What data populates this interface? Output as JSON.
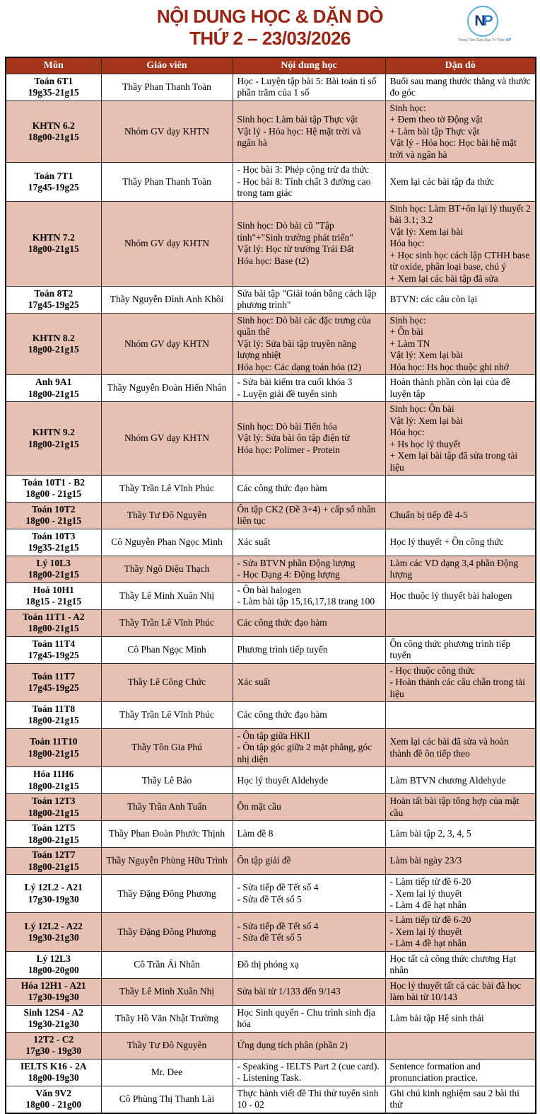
{
  "title": {
    "line1": "NỘI DUNG HỌC & DẶN DÒ",
    "line2": "THỨ 2 – 23/03/2026"
  },
  "logo": {
    "letter_n": "N",
    "letter_p": "P",
    "subtext": "Trung Tâm Giáo Dục Trí Thức",
    "subtext_brand": "NP"
  },
  "colors": {
    "title": "#9b2312",
    "header_bg": "#a5361b",
    "header_text": "#ffffff",
    "row_highlight": "#e6c1b3",
    "logo_blue": "#56aee0"
  },
  "table": {
    "headers": [
      "Môn",
      "Giáo viên",
      "Nội dung học",
      "Dặn dò"
    ],
    "rows": [
      {
        "subject": "Toán 6T1",
        "time": "19g35-21g15",
        "teacher": "Thầy Phan Thanh Toàn",
        "content": [
          "Học - Luyện tập bài 5: Bài toán tỉ số phần trăm của 1 số"
        ],
        "homework": [
          "Buổi sau mang thước thẳng và thước đo góc"
        ],
        "highlight": false
      },
      {
        "subject": "KHTN 6.2",
        "time": "18g00-21g15",
        "teacher": "Nhóm GV dạy KHTN",
        "content": [
          "Sinh học: Làm bài tập Thực vật",
          "Vật lý - Hóa học: Hệ mặt trời và ngân hà"
        ],
        "homework": [
          "Sinh học:",
          "+ Đem theo tờ Động vật",
          "+ Làm bài tập Thực vật",
          "Vật lý - Hóa học: Học bài hệ mặt trời và ngân hà"
        ],
        "highlight": true
      },
      {
        "subject": "Toán 7T1",
        "time": "17g45-19g25",
        "teacher": "Thầy Phan Thanh Toàn",
        "content": [
          "- Học bài 3: Phép cộng trừ đa thức",
          "- Học bài 8: Tính chất 3 đường cao trong tam giác"
        ],
        "homework": [
          "Xem lại các bài tập đa thức"
        ],
        "highlight": false
      },
      {
        "subject": "KHTN 7.2",
        "time": "18g00-21g15",
        "teacher": "Nhóm GV dạy KHTN",
        "content": [
          "Sinh học: Dò bài cũ \"Tập tính\"+\"Sinh trưởng phát triển\"",
          "Vật lý: Học từ trường Trái Đất",
          "Hóa học: Base (t2)"
        ],
        "homework": [
          "Sinh học: Làm BT+ôn lại lý thuyết 2 bài 3.1; 3.2",
          "Vật lý: Xem lại bài",
          "Hóa học:",
          "+ Học sinh học cách lập CTHH base từ oxide, phân loại base, chú ý",
          "+ Xem lại các bài tập đã sửa"
        ],
        "highlight": true
      },
      {
        "subject": "Toán 8T2",
        "time": "17g45-19g25",
        "teacher": "Thầy Nguyễn Đình Anh Khôi",
        "content": [
          "Sửa bài tập \"Giải toán bằng cách lập phương trình\""
        ],
        "homework": [
          "BTVN: các câu còn lại"
        ],
        "highlight": false
      },
      {
        "subject": "KHTN 8.2",
        "time": "18g00-21g15",
        "teacher": "Nhóm GV dạy KHTN",
        "content": [
          "Sinh học: Dò bài các đặc trưng của quần thể",
          "Vật lý: Sửa bài tập truyền năng lượng nhiệt",
          "Hóa học: Các dạng toán hóa (t2)"
        ],
        "homework": [
          "Sinh học:",
          "+ Ôn bài",
          "+  Làm TN",
          "Vật lý: Xem lại bài",
          "Hóa học: Hs học thuộc ghi nhớ"
        ],
        "highlight": true
      },
      {
        "subject": "Anh 9A1",
        "time": "18g00-21g15",
        "teacher": "Thầy Nguyễn Đoàn Hiển Nhân",
        "content": [
          "- Sửa bài kiểm tra cuối khóa 3",
          "- Luyện giải đề tuyển sinh"
        ],
        "homework": [
          "Hoàn thành phần còn lại của đề luyện tập"
        ],
        "highlight": false
      },
      {
        "subject": "KHTN 9.2",
        "time": "18g00-21g15",
        "teacher": "Nhóm GV dạy KHTN",
        "content": [
          "Sinh học: Dò bài Tiến hóa",
          "Vật lý: Sửa bài ôn tập điện từ",
          "Hóa học: Polimer - Protein"
        ],
        "homework": [
          "Sinh học: Ôn bài",
          "Vật lý: Xem lại bài",
          "Hóa học:",
          "+ Hs học lý thuyết",
          "+ Xem lại bài tập đã sửa trong tài liệu"
        ],
        "highlight": true
      },
      {
        "subject": "Toán 10T1 - B2",
        "time": "18g00 - 21g15",
        "teacher": "Thầy Trần Lê Vĩnh Phúc",
        "content": [
          "Các công thức đạo hàm"
        ],
        "homework": [],
        "highlight": false
      },
      {
        "subject": "Toán 10T2",
        "time": "18g00 - 21g15",
        "teacher": "Thầy Tư Đô Nguyên",
        "content": [
          "Ôn tập CK2 (Đề 3+4) + cấp số nhân liên tục"
        ],
        "homework": [
          "Chuẩn bị tiếp đề 4-5"
        ],
        "highlight": true
      },
      {
        "subject": "Toán 10T3",
        "time": "19g35-21g15",
        "teacher": "Cô Nguyễn Phan Ngọc Minh",
        "content": [
          "Xác suất"
        ],
        "homework": [
          "Học lý thuyết + Ôn công thức"
        ],
        "highlight": false
      },
      {
        "subject": "Lý 10L3",
        "time": "18g00-21g15",
        "teacher": "Thầy Ngô Diệu Thạch",
        "content": [
          "- Sửa BTVN phần Động lượng",
          "- Học Dạng 4: Động lượng"
        ],
        "homework": [
          "Làm các VD dạng 3,4 phần Động lượng"
        ],
        "highlight": true
      },
      {
        "subject": "Hoá 10H1",
        "time": "18g15 - 21g15",
        "teacher": "Thầy Lê Minh Xuân Nhị",
        "content": [
          "- Ôn bài halogen",
          "- Làm bài tập 15,16,17,18 trang 100"
        ],
        "homework": [
          "Học thuộc lý thuyết bài halogen"
        ],
        "highlight": false
      },
      {
        "subject": "Toán 11T1 - A2",
        "time": "18g00-21g15",
        "teacher": "Thầy Trần Lê Vĩnh Phúc",
        "content": [
          "Các công thức đạo hàm"
        ],
        "homework": [],
        "highlight": true
      },
      {
        "subject": "Toán 11T4",
        "time": "17g45-19g25",
        "teacher": "Cô Phan Ngọc Minh",
        "content": [
          "Phương trình tiếp tuyến"
        ],
        "homework": [
          "Ôn công thức phương trình tiếp tuyến"
        ],
        "highlight": false
      },
      {
        "subject": "Toán 11T7",
        "time": "17g45-19g25",
        "teacher": "Thầy Lê Công Chức",
        "content": [
          "Xác suất"
        ],
        "homework": [
          "- Học thuộc công thức",
          "- Hoàn thành các câu chẵn trong tài liệu"
        ],
        "highlight": true
      },
      {
        "subject": "Toán 11T8",
        "time": "18g00-21g15",
        "teacher": "Thầy Trần Lê Vĩnh Phúc",
        "content": [
          "Các công thức đạo hàm"
        ],
        "homework": [],
        "highlight": false
      },
      {
        "subject": "Toán 11T10",
        "time": "18g00-21g15",
        "teacher": "Thầy Tôn Gia Phú",
        "content": [
          "- Ôn tập giữa HKII",
          "- Ôn tập góc giữa 2 mặt phẳng, góc nhị diện"
        ],
        "homework": [
          "Xem lại các bài đã sửa và hoàn thành đề ôn tiếp theo"
        ],
        "highlight": true
      },
      {
        "subject": "Hóa 11H6",
        "time": "18g00-21g15",
        "teacher": "Thầy Lê Bảo",
        "content": [
          "Học lý thuyết Aldehyde"
        ],
        "homework": [
          "Làm BTVN chương Aldehyde"
        ],
        "highlight": false
      },
      {
        "subject": "Toán 12T3",
        "time": "18g00-21g15",
        "teacher": "Thầy Trần Anh Tuấn",
        "content": [
          "Ôn mặt cầu"
        ],
        "homework": [
          "Hoàn tất bài tập tổng hợp của mặt cầu"
        ],
        "highlight": true
      },
      {
        "subject": "Toán 12T5",
        "time": "18g00-21g15",
        "teacher": "Thầy Phan Đoàn Phước Thịnh",
        "content": [
          "Làm đề 8"
        ],
        "homework": [
          "Làm bài tập 2, 3, 4, 5"
        ],
        "highlight": false
      },
      {
        "subject": "Toán 12T7",
        "time": "18g00-21g15",
        "teacher": "Thầy Nguyễn Phùng Hữu Trình",
        "content": [
          "Ôn tập giải đề"
        ],
        "homework": [
          "Làm bài ngày 23/3"
        ],
        "highlight": true
      },
      {
        "subject": "Lý 12L2 - A21",
        "time": "17g30-19g30",
        "teacher": "Thầy Đặng Đông Phương",
        "content": [
          "- Sửa tiếp đề Tết số 4",
          "- Sửa đề Tết số 5"
        ],
        "homework": [
          "- Làm tiếp từ đề 6-20",
          "- Xem lại lý thuyết",
          "- Làm 4 đề hạt nhân"
        ],
        "highlight": false
      },
      {
        "subject": "Lý 12L2 - A22",
        "time": "19g30-21g30",
        "teacher": "Thầy Đặng Đông Phương",
        "content": [
          "- Sửa tiếp đề Tết số 4",
          "- Sửa đề Tết số 5"
        ],
        "homework": [
          "- Làm tiếp từ đề 6-20",
          "- Xem lại lý thuyết",
          "- Làm 4 đề hạt nhân"
        ],
        "highlight": true
      },
      {
        "subject": "Lý 12L3",
        "time": "18g00-20g00",
        "teacher": "Cô Trần Ái Nhân",
        "content": [
          "Đồ thị phóng xạ"
        ],
        "homework": [
          "Học tất cả công thức chương Hạt nhân"
        ],
        "highlight": false
      },
      {
        "subject": "Hóa 12H1 - A21",
        "time": "17g30-19g30",
        "teacher": "Thầy Lê Minh Xuân Nhị",
        "content": [
          "Sửa bài từ 1/133 đến 9/143"
        ],
        "homework": [
          "Học lý thuyết tất cả các bài đã học làm bài từ 10/143"
        ],
        "highlight": true
      },
      {
        "subject": "Sinh 12S4 - A2",
        "time": "19g30-21g30",
        "teacher": "Thầy Hồ Văn Nhật Trường",
        "content": [
          "Học Sinh quyển - Chu trình sinh địa hóa"
        ],
        "homework": [
          "Làm bài tập Hệ sinh thái"
        ],
        "highlight": false
      },
      {
        "subject": "12T2 - C2",
        "time": "17g30 - 19g30",
        "teacher": "Thầy Tư Đô Nguyên",
        "content": [
          "Ứng dụng tích phân (phần 2)"
        ],
        "homework": [],
        "highlight": true
      },
      {
        "subject": "IELTS K16 - 2A",
        "time": "18g00-19g30",
        "teacher": "Mr. Dee",
        "content": [
          "- Speaking - IELTS Part 2 (cue card).",
          "- Listening Task."
        ],
        "homework": [
          "Sentence formation and pronunciation practice."
        ],
        "highlight": false
      },
      {
        "subject": "Văn 9V2",
        "time": "18g00 - 21g00",
        "teacher": "Cô Phùng Thị Thanh Lài",
        "content": [
          "Thực hành viết đề Thi thử tuyển sinh 10 - 02"
        ],
        "homework": [
          "Ghi chú kinh nghiệm sau 2 bài thi thử"
        ],
        "highlight": false
      }
    ]
  }
}
